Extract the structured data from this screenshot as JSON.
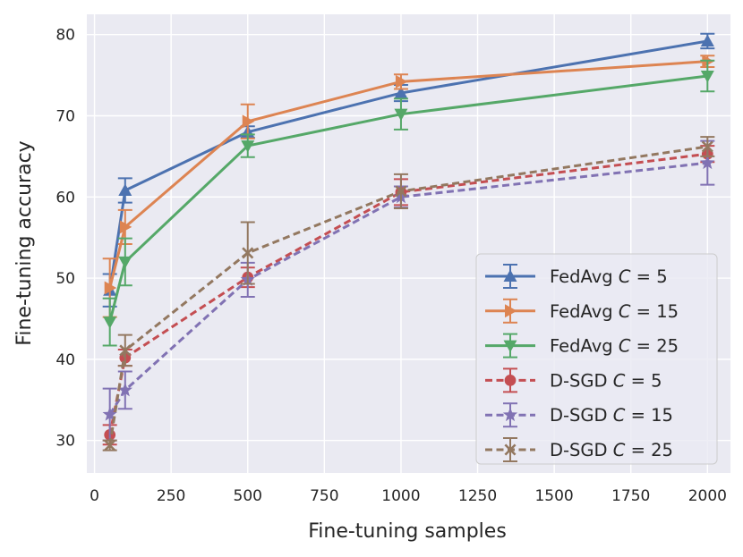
{
  "chart_data": {
    "type": "line",
    "xlabel": "Fine-tuning samples",
    "ylabel": "Fine-tuning accuracy",
    "xlim": [
      -25,
      2075
    ],
    "ylim": [
      26,
      82.5
    ],
    "xticks": [
      0,
      250,
      500,
      750,
      1000,
      1250,
      1500,
      1750,
      2000
    ],
    "yticks": [
      30,
      40,
      50,
      60,
      70,
      80
    ],
    "xtick_labels": [
      "0",
      "250",
      "500",
      "750",
      "1000",
      "1250",
      "1500",
      "1750",
      "2000"
    ],
    "ytick_labels": [
      "30",
      "40",
      "50",
      "60",
      "70",
      "80"
    ],
    "grid": true,
    "legend_position": "lower-right",
    "x": [
      50,
      100,
      500,
      1000,
      2000
    ],
    "series": [
      {
        "name": "FedAvg C = 5",
        "legend_prefix": "FedAvg",
        "legend_c": "C",
        "legend_val": "5",
        "color": "#4c72b0",
        "linestyle": "solid",
        "marker": "triangle-up",
        "values": [
          48.5,
          60.8,
          68.0,
          72.8,
          79.2
        ],
        "err": [
          [
            46.5,
            50.5
          ],
          [
            59.3,
            62.3
          ],
          [
            67.3,
            68.7
          ],
          [
            71.8,
            73.8
          ],
          [
            78.3,
            80.1
          ]
        ]
      },
      {
        "name": "FedAvg C = 15",
        "legend_prefix": "FedAvg",
        "legend_c": "C",
        "legend_val": "15",
        "color": "#dd8452",
        "linestyle": "solid",
        "marker": "triangle-right",
        "values": [
          48.8,
          56.3,
          69.3,
          74.2,
          76.7
        ],
        "err": [
          [
            45.2,
            52.4
          ],
          [
            54.2,
            58.4
          ],
          [
            67.2,
            71.4
          ],
          [
            73.3,
            75.1
          ],
          [
            76.0,
            77.4
          ]
        ]
      },
      {
        "name": "FedAvg C = 25",
        "legend_prefix": "FedAvg",
        "legend_c": "C",
        "legend_val": "25",
        "color": "#55a868",
        "linestyle": "solid",
        "marker": "triangle-down",
        "values": [
          44.6,
          52.0,
          66.3,
          70.2,
          74.9
        ],
        "err": [
          [
            41.7,
            47.5
          ],
          [
            49.1,
            54.9
          ],
          [
            64.9,
            67.7
          ],
          [
            68.3,
            72.1
          ],
          [
            73.0,
            76.8
          ]
        ]
      },
      {
        "name": "D-SGD C = 5",
        "legend_prefix": "D-SGD",
        "legend_c": "C",
        "legend_val": "5",
        "color": "#c44e52",
        "linestyle": "dashed",
        "marker": "circle",
        "values": [
          30.7,
          40.2,
          50.1,
          60.6,
          65.3
        ],
        "err": [
          [
            29.5,
            31.9
          ],
          [
            39.2,
            41.2
          ],
          [
            48.9,
            51.3
          ],
          [
            59.0,
            62.2
          ],
          [
            64.3,
            66.3
          ]
        ]
      },
      {
        "name": "D-SGD C = 15",
        "legend_prefix": "D-SGD",
        "legend_c": "C",
        "legend_val": "15",
        "color": "#8172b3",
        "linestyle": "dashed",
        "marker": "star",
        "values": [
          33.2,
          36.2,
          49.8,
          60.0,
          64.2
        ],
        "err": [
          [
            30.0,
            36.4
          ],
          [
            33.9,
            38.5
          ],
          [
            47.7,
            51.9
          ],
          [
            58.7,
            61.3
          ],
          [
            61.5,
            66.9
          ]
        ]
      },
      {
        "name": "D-SGD C = 25",
        "legend_prefix": "D-SGD",
        "legend_c": "C",
        "legend_val": "25",
        "color": "#937860",
        "linestyle": "dashed",
        "marker": "x",
        "values": [
          29.4,
          41.1,
          53.1,
          60.7,
          66.2
        ],
        "err": [
          [
            28.8,
            30.0
          ],
          [
            39.2,
            43.0
          ],
          [
            49.3,
            56.9
          ],
          [
            58.6,
            62.8
          ],
          [
            65.0,
            67.4
          ]
        ]
      }
    ]
  }
}
